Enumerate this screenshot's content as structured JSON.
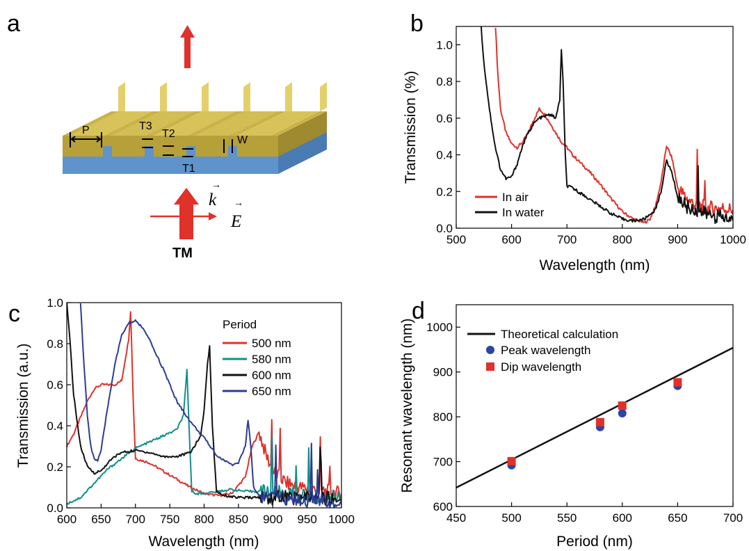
{
  "panels": {
    "a": {
      "letter": "a",
      "labels": {
        "P": "P",
        "T1": "T1",
        "T2": "T2",
        "T3": "T3",
        "W": "W",
        "k": "k",
        "E": "E",
        "TM": "TM"
      },
      "colors": {
        "gold": "#c9b24a",
        "substrate": "#5f93cc",
        "arrow": "#e0312b"
      }
    },
    "b": {
      "letter": "b"
    },
    "c": {
      "letter": "c"
    },
    "d": {
      "letter": "d"
    }
  },
  "chart_data": [
    {
      "panel": "b",
      "type": "line",
      "xlabel": "Wavelength (nm)",
      "ylabel": "Transmission (%)",
      "xlim": [
        500,
        1000
      ],
      "ylim": [
        0,
        1.1
      ],
      "xticks": [
        500,
        600,
        700,
        800,
        900,
        1000
      ],
      "yticks": [
        0.0,
        0.2,
        0.4,
        0.6,
        0.8,
        1.0
      ],
      "xtick_labels": [
        "500",
        "600",
        "700",
        "800",
        "900",
        "1000"
      ],
      "ytick_labels": [
        "0.0",
        "0.2",
        "0.4",
        "0.6",
        "0.8",
        "1.0"
      ],
      "legend_position": "bottom-left",
      "series": [
        {
          "name": "In air",
          "color": "#e0312b",
          "x": [
            571,
            575,
            580,
            590,
            600,
            610,
            620,
            630,
            640,
            650,
            660,
            670,
            680,
            690,
            700,
            710,
            720,
            740,
            760,
            780,
            800,
            820,
            840,
            850,
            860,
            870,
            880,
            890,
            900,
            920,
            940,
            960,
            980,
            1000
          ],
          "y": [
            1.1,
            0.85,
            0.65,
            0.52,
            0.46,
            0.44,
            0.47,
            0.52,
            0.59,
            0.65,
            0.62,
            0.57,
            0.52,
            0.47,
            0.44,
            0.4,
            0.37,
            0.31,
            0.24,
            0.16,
            0.09,
            0.05,
            0.03,
            0.05,
            0.12,
            0.25,
            0.45,
            0.38,
            0.22,
            0.15,
            0.12,
            0.11,
            0.11,
            0.1
          ]
        },
        {
          "name": "In water",
          "color": "#111111",
          "x": [
            545,
            550,
            560,
            570,
            580,
            590,
            600,
            610,
            620,
            630,
            640,
            650,
            660,
            670,
            680,
            687,
            690,
            693,
            697,
            700,
            710,
            720,
            740,
            760,
            780,
            800,
            820,
            840,
            860,
            870,
            880,
            890,
            900,
            920,
            940,
            960,
            980,
            1000
          ],
          "y": [
            1.1,
            0.9,
            0.65,
            0.45,
            0.32,
            0.27,
            0.28,
            0.35,
            0.45,
            0.52,
            0.57,
            0.6,
            0.61,
            0.62,
            0.6,
            0.7,
            0.97,
            0.8,
            0.4,
            0.23,
            0.22,
            0.2,
            0.16,
            0.12,
            0.08,
            0.05,
            0.04,
            0.05,
            0.1,
            0.2,
            0.37,
            0.3,
            0.17,
            0.11,
            0.09,
            0.07,
            0.06,
            0.04
          ]
        }
      ]
    },
    {
      "panel": "c",
      "type": "line",
      "xlabel": "Wavelength (nm)",
      "ylabel": "Transmission (a.u.)",
      "xlim": [
        600,
        1000
      ],
      "ylim": [
        0,
        1.0
      ],
      "xticks": [
        600,
        650,
        700,
        750,
        800,
        850,
        900,
        950,
        1000
      ],
      "yticks": [
        0.0,
        0.2,
        0.4,
        0.6,
        0.8,
        1.0
      ],
      "xtick_labels": [
        "600",
        "650",
        "700",
        "750",
        "800",
        "850",
        "900",
        "950",
        "1000"
      ],
      "ytick_labels": [
        "0.0",
        "0.2",
        "0.4",
        "0.6",
        "0.8",
        "1.0"
      ],
      "legend_title": "Period",
      "legend_position": "top-right",
      "series": [
        {
          "name": "500 nm",
          "color": "#e0312b",
          "x": [
            600,
            610,
            620,
            630,
            640,
            650,
            660,
            670,
            680,
            690,
            693,
            697,
            700,
            720,
            740,
            760,
            780,
            800,
            820,
            840,
            860,
            870,
            880,
            890,
            900,
            920,
            940,
            960,
            980,
            1000
          ],
          "y": [
            0.3,
            0.36,
            0.44,
            0.52,
            0.58,
            0.6,
            0.6,
            0.6,
            0.62,
            0.82,
            0.96,
            0.5,
            0.24,
            0.22,
            0.18,
            0.14,
            0.1,
            0.07,
            0.06,
            0.07,
            0.15,
            0.3,
            0.37,
            0.26,
            0.18,
            0.12,
            0.1,
            0.09,
            0.08,
            0.07
          ]
        },
        {
          "name": "580 nm",
          "color": "#0f8f8a",
          "x": [
            600,
            620,
            640,
            660,
            680,
            700,
            720,
            740,
            760,
            770,
            775,
            778,
            782,
            790,
            800,
            820,
            840,
            860,
            880,
            900,
            920,
            940,
            960,
            980,
            1000
          ],
          "y": [
            0.02,
            0.05,
            0.12,
            0.19,
            0.24,
            0.29,
            0.32,
            0.35,
            0.38,
            0.45,
            0.67,
            0.4,
            0.08,
            0.07,
            0.07,
            0.08,
            0.09,
            0.08,
            0.08,
            0.08,
            0.07,
            0.06,
            0.05,
            0.05,
            0.06
          ]
        },
        {
          "name": "600 nm",
          "color": "#111111",
          "x": [
            600,
            605,
            610,
            620,
            630,
            640,
            650,
            660,
            670,
            680,
            700,
            720,
            740,
            760,
            780,
            795,
            800,
            805,
            808,
            812,
            818,
            830,
            850,
            880,
            920,
            960,
            1000
          ],
          "y": [
            1.0,
            0.8,
            0.55,
            0.3,
            0.2,
            0.17,
            0.18,
            0.22,
            0.25,
            0.27,
            0.28,
            0.27,
            0.25,
            0.25,
            0.27,
            0.35,
            0.48,
            0.7,
            0.79,
            0.4,
            0.08,
            0.06,
            0.05,
            0.05,
            0.05,
            0.05,
            0.04
          ]
        },
        {
          "name": "650 nm",
          "color": "#2c3b93",
          "x": [
            620,
            625,
            630,
            635,
            640,
            645,
            650,
            660,
            670,
            680,
            690,
            700,
            710,
            720,
            740,
            760,
            780,
            800,
            820,
            840,
            850,
            860,
            864,
            868,
            872,
            880,
            900,
            940,
            980,
            1000
          ],
          "y": [
            1.0,
            0.7,
            0.45,
            0.3,
            0.24,
            0.23,
            0.28,
            0.5,
            0.7,
            0.84,
            0.9,
            0.91,
            0.88,
            0.82,
            0.68,
            0.52,
            0.42,
            0.34,
            0.25,
            0.21,
            0.22,
            0.3,
            0.43,
            0.3,
            0.1,
            0.06,
            0.05,
            0.04,
            0.03,
            0.02
          ]
        }
      ]
    },
    {
      "panel": "d",
      "type": "scatter",
      "xlabel": "Period (nm)",
      "ylabel": "Resonant wavelength (nm)",
      "xlim": [
        450,
        700
      ],
      "ylim": [
        600,
        1050
      ],
      "xticks": [
        450,
        500,
        550,
        600,
        650,
        700
      ],
      "yticks": [
        600,
        700,
        800,
        900,
        1000
      ],
      "xtick_labels": [
        "450",
        "500",
        "550",
        "600",
        "650",
        "700"
      ],
      "ytick_labels": [
        "600",
        "700",
        "800",
        "900",
        "1000"
      ],
      "legend_position": "top-left",
      "line": {
        "name": "Theoretical calculation",
        "color": "#111111",
        "x": [
          450,
          700
        ],
        "y": [
          642,
          954
        ]
      },
      "series": [
        {
          "name": "Peak wavelength",
          "color": "#2c44a8",
          "marker": "circle",
          "x": [
            500,
            580,
            600,
            650
          ],
          "y": [
            692,
            777,
            808,
            869
          ]
        },
        {
          "name": "Dip wavelength",
          "color": "#e0312b",
          "marker": "square",
          "x": [
            500,
            580,
            600,
            650
          ],
          "y": [
            701,
            788,
            825,
            877
          ]
        }
      ]
    }
  ]
}
